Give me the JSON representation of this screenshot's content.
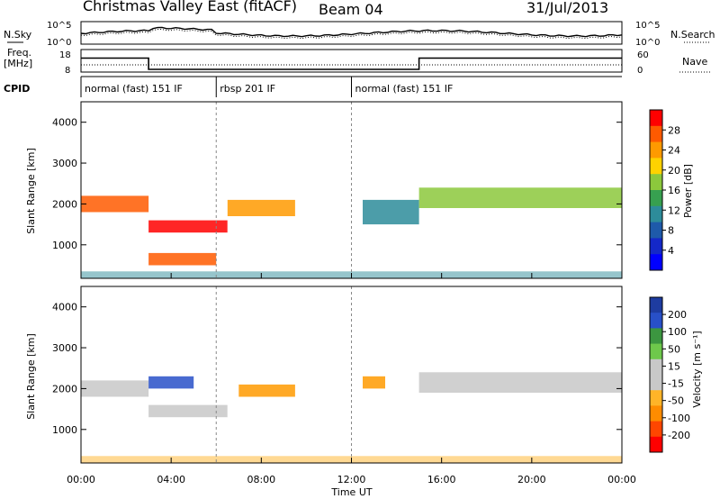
{
  "header": {
    "title": "Christmas Valley East (fitACF)",
    "beam": "Beam 04",
    "date": "31/Jul/2013"
  },
  "noise_panel": {
    "left_label": "N.Sky",
    "right_label": "N.Search",
    "left_ticks": [
      "10^5",
      "10^0"
    ],
    "right_ticks": [
      "10^5",
      "10^0"
    ]
  },
  "freq_panel": {
    "left_label_1": "Freq.",
    "left_label_2": "[MHz]",
    "right_label": "Nave",
    "left_ticks": [
      "18",
      "8"
    ],
    "right_ticks": [
      "60",
      "0"
    ]
  },
  "cpid": {
    "label": "CPID",
    "segments": [
      {
        "text": "normal (fast) 151 IF",
        "start_hour": 0,
        "end_hour": 6
      },
      {
        "text": "rbsp 201 IF",
        "start_hour": 6,
        "end_hour": 12
      },
      {
        "text": "normal (fast) 151 IF",
        "start_hour": 12,
        "end_hour": 24
      }
    ]
  },
  "power_panel": {
    "ylabel": "Slant Range [km]",
    "colorbar_title": "Power [dB]",
    "colorbar_ticks": [
      "28",
      "24",
      "20",
      "16",
      "12",
      "8",
      "4"
    ],
    "colorbar_colors": [
      "#ff0000",
      "#ff5a00",
      "#ff9a00",
      "#ffd200",
      "#8cc83c",
      "#37a050",
      "#2d8c9a",
      "#1e5aaa",
      "#1428c8",
      "#0000ff"
    ]
  },
  "velocity_panel": {
    "ylabel": "Slant Range [km]",
    "colorbar_title": "Velocity [m s⁻¹]",
    "colorbar_ticks": [
      "200",
      "100",
      "50",
      "15",
      "-15",
      "-50",
      "-100",
      "-200"
    ],
    "colorbar_colors": [
      "#1e3ca0",
      "#2850c8",
      "#3c9640",
      "#6ec84b",
      "#c8c8c8",
      "#c8c8c8",
      "#ffb428",
      "#ff8c00",
      "#ff4600",
      "#ff0000"
    ]
  },
  "xaxis": {
    "label": "Time UT",
    "ticks": [
      "00:00",
      "04:00",
      "08:00",
      "12:00",
      "16:00",
      "20:00",
      "00:00"
    ]
  },
  "chart_data": {
    "type": "heatmap",
    "title": "Christmas Valley East (fitACF)",
    "xlabel": "Time UT",
    "ylabel": "Slant Range [km]",
    "xlim_hours": [
      0,
      24
    ],
    "ylim_km": [
      180,
      4500
    ],
    "y_ticks": [
      1000,
      2000,
      3000,
      4000
    ],
    "x_ticks": [
      "00:00",
      "04:00",
      "08:00",
      "12:00",
      "16:00",
      "20:00",
      "00:00"
    ],
    "freq_series": {
      "name": "Freq.",
      "points": [
        [
          0,
          15
        ],
        [
          3,
          15
        ],
        [
          3,
          10
        ],
        [
          15,
          10
        ],
        [
          15,
          15
        ],
        [
          24,
          15
        ]
      ]
    },
    "power_bands": [
      {
        "t0": 0,
        "t1": 3,
        "r0": 1800,
        "r1": 2200,
        "level_db": 26
      },
      {
        "t0": 3,
        "t1": 6.5,
        "r0": 1300,
        "r1": 1600,
        "level_db": 28
      },
      {
        "t0": 6.5,
        "t1": 9.5,
        "r0": 1700,
        "r1": 2100,
        "level_db": 22
      },
      {
        "t0": 3,
        "t1": 6,
        "r0": 500,
        "r1": 800,
        "level_db": 24
      },
      {
        "t0": 12.5,
        "t1": 15,
        "r0": 1500,
        "r1": 2100,
        "level_db": 12
      },
      {
        "t0": 15,
        "t1": 24,
        "r0": 1900,
        "r1": 2400,
        "level_db": 18
      }
    ],
    "velocity_bands": [
      {
        "t0": 0,
        "t1": 3,
        "r0": 1800,
        "r1": 2200,
        "vel": 0
      },
      {
        "t0": 3,
        "t1": 5,
        "r0": 2000,
        "r1": 2300,
        "vel": 200
      },
      {
        "t0": 3,
        "t1": 6.5,
        "r0": 1300,
        "r1": 1600,
        "vel": 0
      },
      {
        "t0": 7,
        "t1": 9.5,
        "r0": 1800,
        "r1": 2100,
        "vel": -50
      },
      {
        "t0": 12.5,
        "t1": 13.5,
        "r0": 2000,
        "r1": 2300,
        "vel": -50
      },
      {
        "t0": 15,
        "t1": 24,
        "r0": 1900,
        "r1": 2400,
        "vel": 0
      }
    ]
  }
}
